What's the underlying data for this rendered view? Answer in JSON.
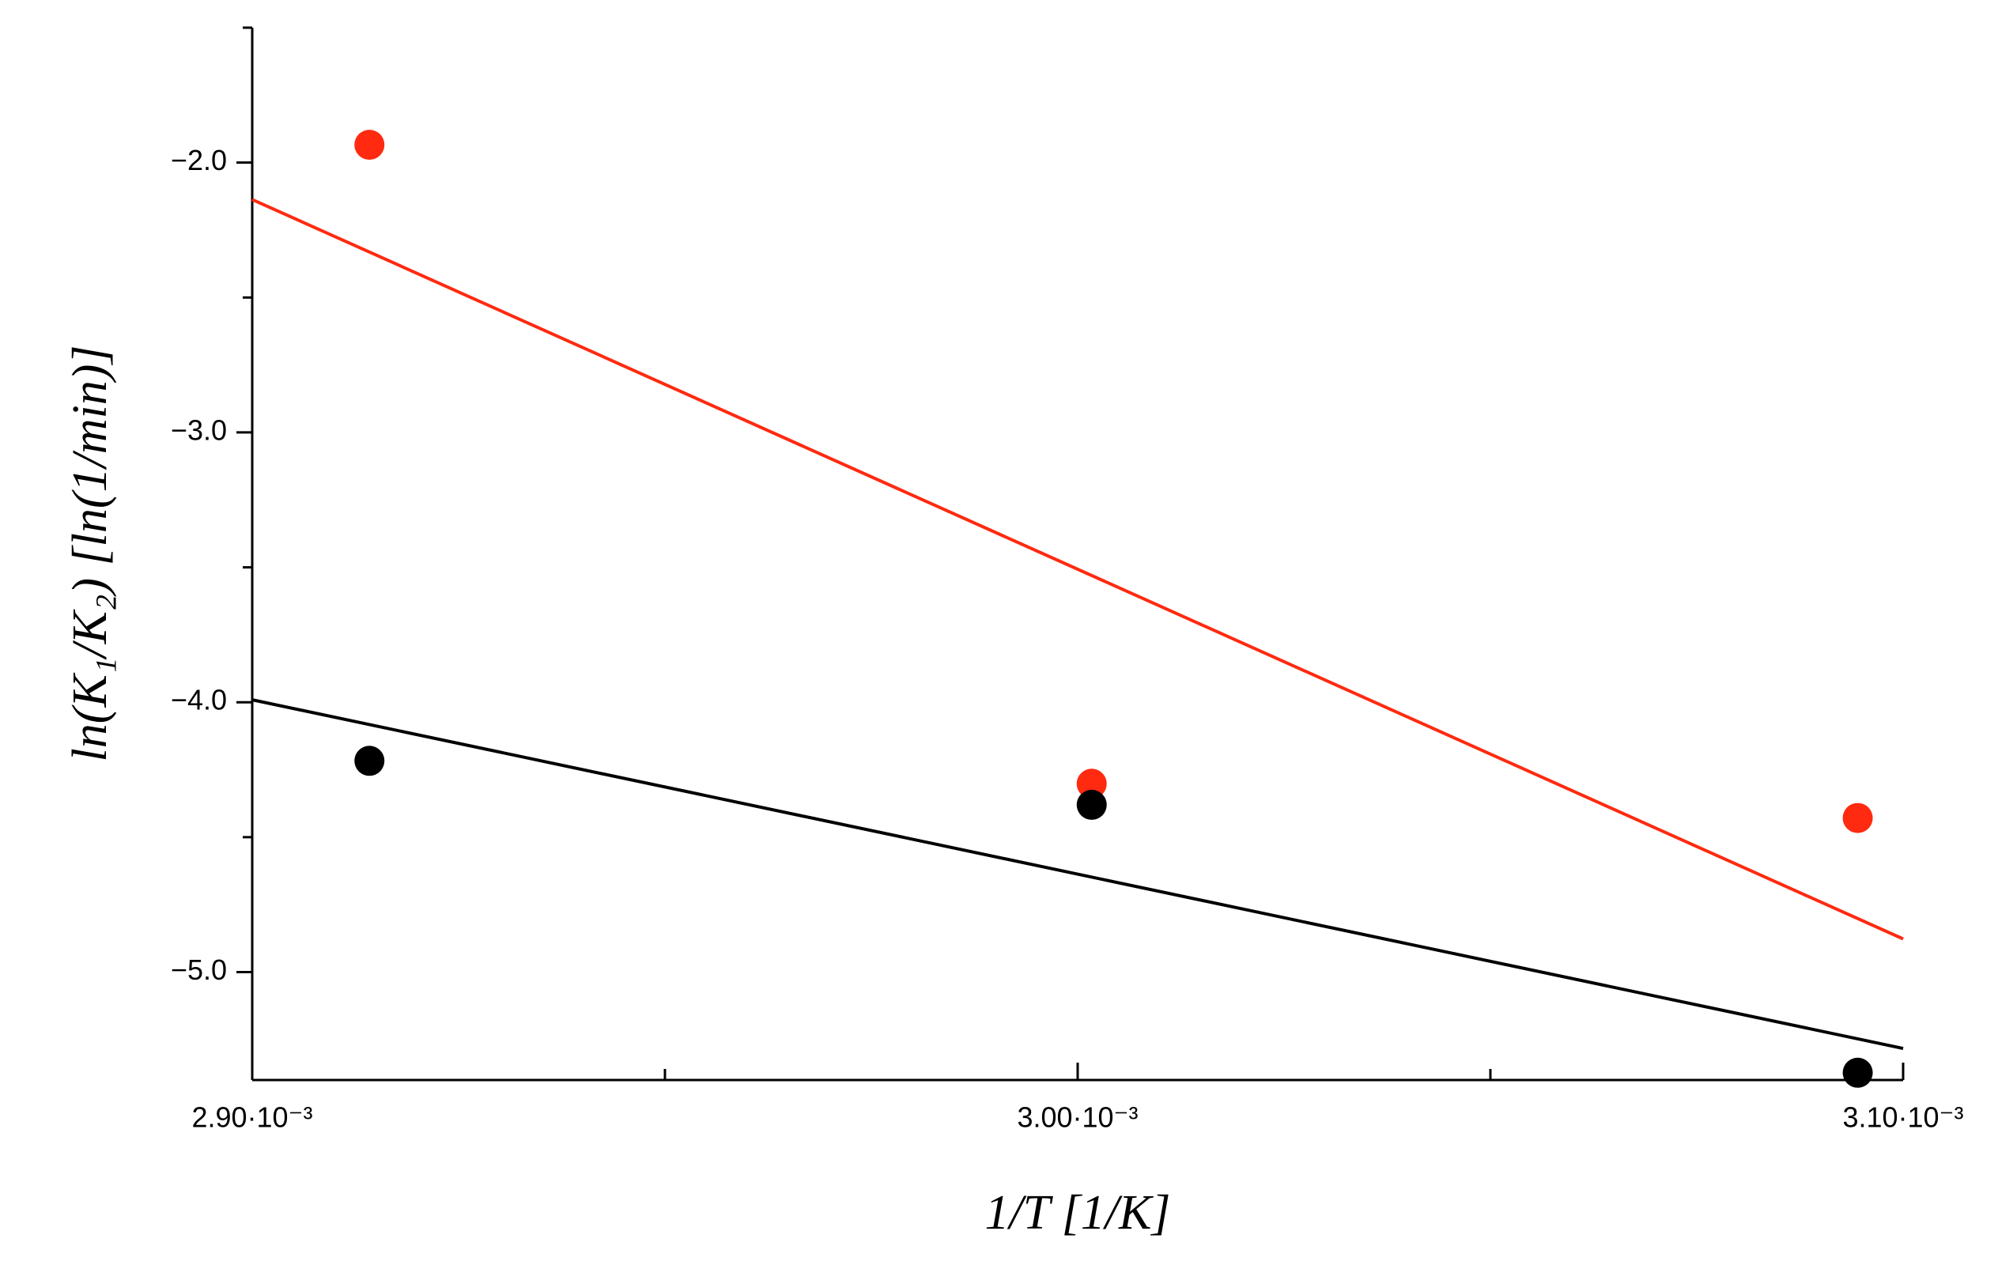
{
  "chart_data": {
    "type": "scatter",
    "x_label": "1/T [1/K]",
    "y_label": "ln(K₁/K₂) [ln(1/min)]",
    "xlim": [
      0.0029,
      0.0031
    ],
    "ylim": [
      -5.4,
      -1.5
    ],
    "xticks": [
      {
        "value": 0.0029,
        "label": "2.90·10⁻³"
      },
      {
        "value": 0.003,
        "label": "3.00·10⁻³"
      },
      {
        "value": 0.0031,
        "label": "3.10·10⁻³"
      }
    ],
    "xminorticks": [
      0.00295,
      0.00305
    ],
    "yticks": [
      {
        "value": -2,
        "label": "−2.0"
      },
      {
        "value": -3,
        "label": "−3.0"
      },
      {
        "value": -4,
        "label": "−4.0"
      },
      {
        "value": -5,
        "label": "−5.0"
      }
    ],
    "yminorticks": [
      -1.5,
      -2.5,
      -3.5,
      -4.5
    ],
    "grid": false,
    "series": [
      {
        "color": "#ff2a10",
        "x": [
          0.0029142,
          0.0030017,
          0.0030945
        ],
        "values": [
          -1.934,
          -4.302,
          -4.429
        ]
      },
      {
        "color": "#000000",
        "x": [
          0.0029142,
          0.0030017,
          0.0030945
        ],
        "values": [
          -4.217,
          -4.38,
          -5.373
        ]
      }
    ],
    "fits": [
      {
        "color": "#ff2a10",
        "x": [
          0.0029,
          0.0031
        ],
        "values": [
          -2.137,
          -4.877
        ]
      },
      {
        "color": "#000000",
        "x": [
          0.0029,
          0.0031
        ],
        "values": [
          -3.991,
          -5.283
        ]
      }
    ]
  }
}
